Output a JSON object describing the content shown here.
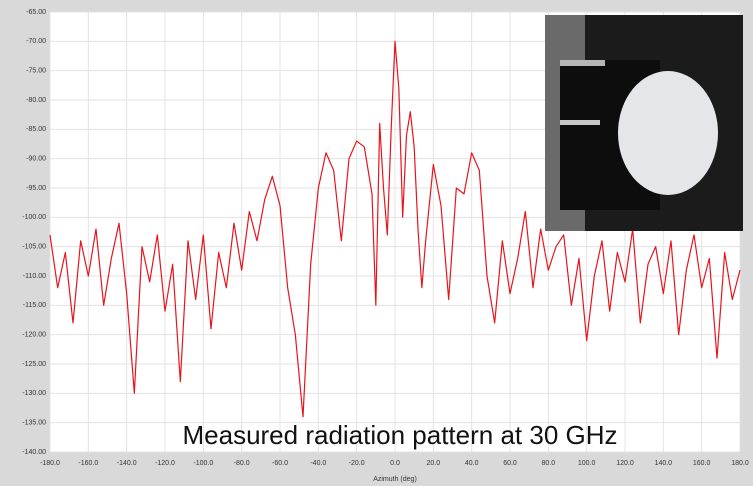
{
  "chart_data": {
    "type": "line",
    "xlabel": "Azimuth (deg)",
    "annotation": "Measured radiation pattern at 30 GHz",
    "color": "#e8141c",
    "grid": true,
    "xlim": [
      -180,
      180
    ],
    "ylim": [
      -140,
      -65
    ],
    "xticks": [
      {
        "value": -180,
        "label": "-180.0"
      },
      {
        "value": -160,
        "label": "-160.0"
      },
      {
        "value": -140,
        "label": "-140.0"
      },
      {
        "value": -120,
        "label": "-120.0"
      },
      {
        "value": -100,
        "label": "-100.0"
      },
      {
        "value": -80,
        "label": "-80.0"
      },
      {
        "value": -60,
        "label": "-60.0"
      },
      {
        "value": -40,
        "label": "-40.0"
      },
      {
        "value": -20,
        "label": "-20.0"
      },
      {
        "value": 0,
        "label": "0.0"
      },
      {
        "value": 20,
        "label": "20.0"
      },
      {
        "value": 40,
        "label": "40.0"
      },
      {
        "value": 60,
        "label": "60.0"
      },
      {
        "value": 80,
        "label": "80.0"
      },
      {
        "value": 100,
        "label": "100.0"
      },
      {
        "value": 120,
        "label": "120.0"
      },
      {
        "value": 140,
        "label": "140.0"
      },
      {
        "value": 160,
        "label": "160.0"
      },
      {
        "value": 180,
        "label": "180.0"
      }
    ],
    "yticks": [
      {
        "value": -65,
        "label": "-65.00"
      },
      {
        "value": -70,
        "label": "-70.00"
      },
      {
        "value": -75,
        "label": "-75.00"
      },
      {
        "value": -80,
        "label": "-80.00"
      },
      {
        "value": -85,
        "label": "-85.00"
      },
      {
        "value": -90,
        "label": "-90.00"
      },
      {
        "value": -95,
        "label": "-95.00"
      },
      {
        "value": -100,
        "label": "-100.00"
      },
      {
        "value": -105,
        "label": "-105.00"
      },
      {
        "value": -110,
        "label": "-110.00"
      },
      {
        "value": -115,
        "label": "-115.00"
      },
      {
        "value": -120,
        "label": "-120.00"
      },
      {
        "value": -125,
        "label": "-125.00"
      },
      {
        "value": -130,
        "label": "-130.00"
      },
      {
        "value": -135,
        "label": "-135.00"
      },
      {
        "value": -140,
        "label": "-140.00"
      }
    ],
    "x": [
      -180,
      -176,
      -172,
      -168,
      -164,
      -160,
      -156,
      -152,
      -148,
      -144,
      -140,
      -136,
      -132,
      -128,
      -124,
      -120,
      -116,
      -112,
      -108,
      -104,
      -100,
      -96,
      -92,
      -88,
      -84,
      -80,
      -76,
      -72,
      -68,
      -64,
      -60,
      -56,
      -52,
      -48,
      -44,
      -40,
      -36,
      -32,
      -28,
      -24,
      -20,
      -16,
      -12,
      -10,
      -8,
      -6,
      -4,
      -2,
      0,
      2,
      4,
      6,
      8,
      10,
      12,
      14,
      16,
      20,
      24,
      28,
      32,
      36,
      40,
      44,
      48,
      52,
      56,
      60,
      64,
      68,
      72,
      76,
      80,
      84,
      88,
      92,
      96,
      100,
      104,
      108,
      112,
      116,
      120,
      124,
      128,
      132,
      136,
      140,
      144,
      148,
      152,
      156,
      160,
      164,
      168,
      172,
      176,
      180
    ],
    "values": [
      -103,
      -112,
      -106,
      -118,
      -104,
      -110,
      -102,
      -115,
      -107,
      -101,
      -113,
      -130,
      -105,
      -111,
      -103,
      -116,
      -108,
      -128,
      -104,
      -114,
      -103,
      -119,
      -106,
      -112,
      -101,
      -109,
      -99,
      -104,
      -97,
      -93,
      -98,
      -112,
      -120,
      -134,
      -108,
      -95,
      -89,
      -92,
      -104,
      -90,
      -87,
      -88,
      -96,
      -115,
      -84,
      -95,
      -103,
      -85,
      -70,
      -78,
      -100,
      -86,
      -82,
      -88,
      -102,
      -112,
      -104,
      -91,
      -98,
      -114,
      -95,
      -96,
      -89,
      -92,
      -110,
      -118,
      -104,
      -113,
      -107,
      -99,
      -112,
      -102,
      -109,
      -105,
      -103,
      -115,
      -107,
      -121,
      -110,
      -104,
      -116,
      -106,
      -111,
      -102,
      -118,
      -108,
      -105,
      -113,
      -104,
      -120,
      -109,
      -103,
      -112,
      -107,
      -124,
      -106,
      -114,
      -109
    ]
  }
}
